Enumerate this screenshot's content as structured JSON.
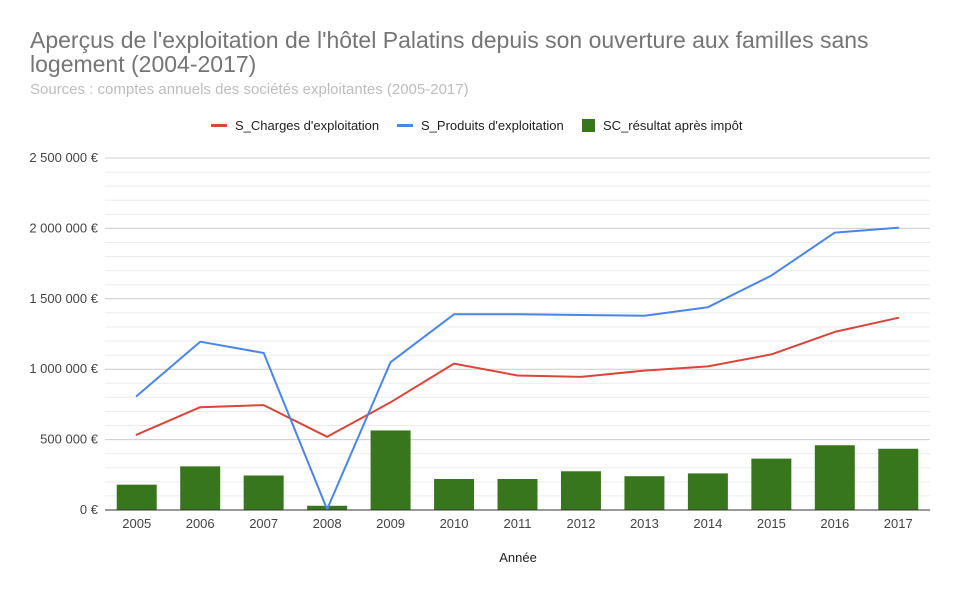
{
  "chart_data": {
    "type": "bar+line",
    "title": "Aperçus de l'exploitation de l'hôtel Palatins depuis son ouverture aux familles sans logement (2004-2017)",
    "subtitle": "Sources : comptes annuels des sociétés exploitantes (2005-2017)",
    "xlabel": "Année",
    "ylabel": "",
    "categories": [
      "2005",
      "2006",
      "2007",
      "2008",
      "2009",
      "2010",
      "2011",
      "2012",
      "2013",
      "2014",
      "2015",
      "2016",
      "2017"
    ],
    "ylim": [
      0,
      2500000
    ],
    "yticks": [
      0,
      500000,
      1000000,
      1500000,
      2000000,
      2500000
    ],
    "ytick_labels": [
      "0 €",
      "500 000 €",
      "1 000 000 €",
      "1 500 000 €",
      "2 000 000 €",
      "2 500 000 €"
    ],
    "legend_position": "top",
    "series": [
      {
        "name": "S_Charges d'exploitation",
        "kind": "line",
        "color": "#d9463a",
        "values": [
          535000,
          730000,
          745000,
          520000,
          765000,
          1040000,
          955000,
          945000,
          990000,
          1020000,
          1105000,
          1265000,
          1365000
        ]
      },
      {
        "name": "S_Produits d'exploitation",
        "kind": "line",
        "color": "#4a86e8",
        "values": [
          810000,
          1195000,
          1115000,
          5000,
          1050000,
          1390000,
          1390000,
          1385000,
          1380000,
          1440000,
          1665000,
          1970000,
          2005000
        ]
      },
      {
        "name": "SC_résultat après impôt",
        "kind": "bar",
        "color": "#38761d",
        "values": [
          180000,
          310000,
          245000,
          30000,
          565000,
          220000,
          220000,
          275000,
          240000,
          260000,
          365000,
          460000,
          435000
        ]
      }
    ]
  }
}
